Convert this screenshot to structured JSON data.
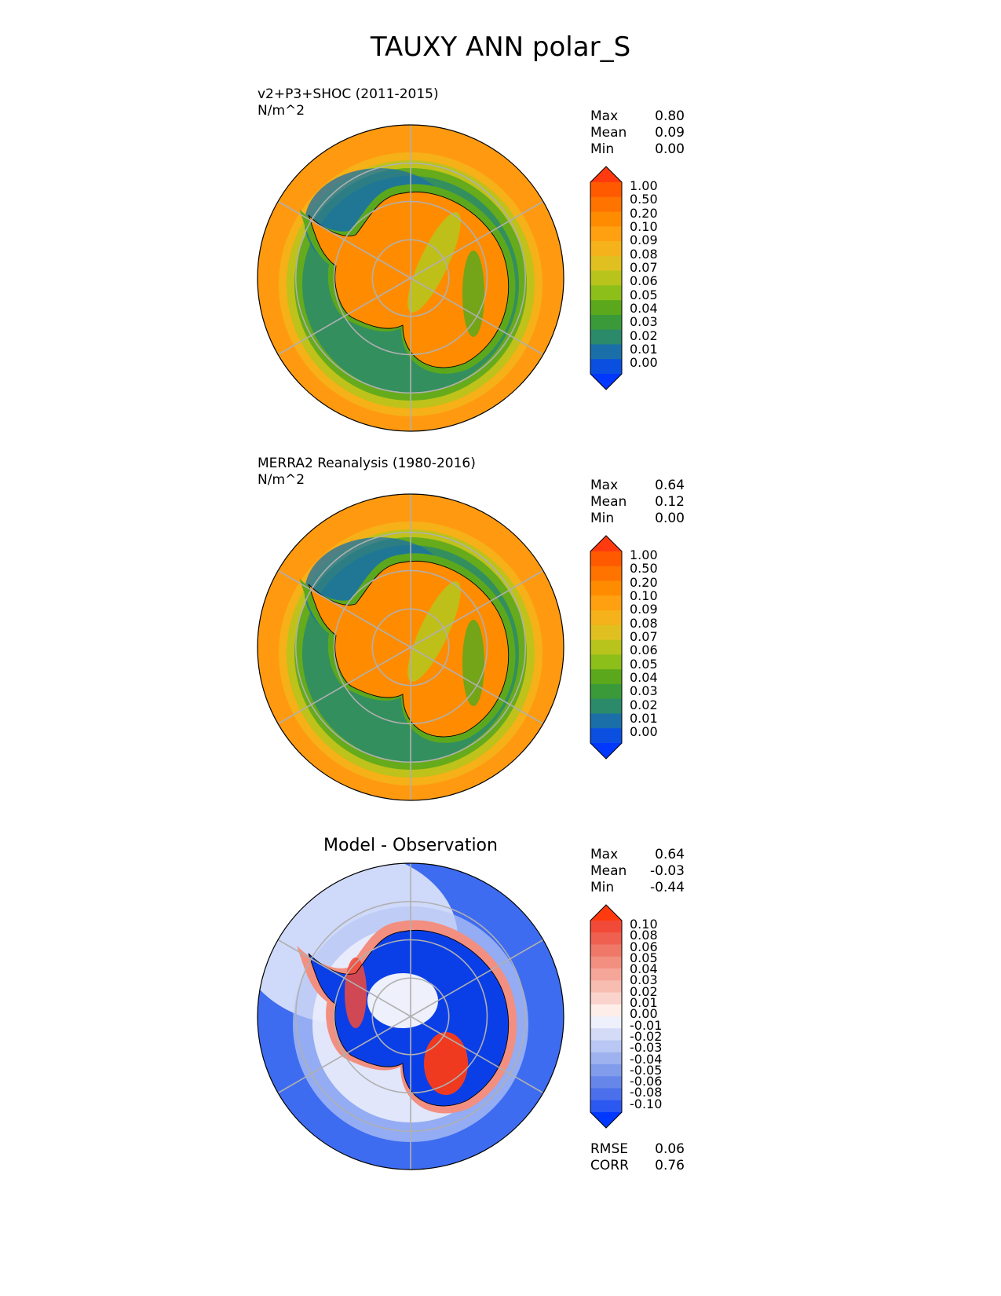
{
  "figure": {
    "title": "TAUXY ANN polar_S"
  },
  "panels": [
    {
      "id": "test",
      "title_line1": "v2+P3+SHOC (2011-2015)",
      "title_line2": "N/m^2",
      "center_title": "",
      "stats": [
        {
          "label": "Max",
          "value": "0.80"
        },
        {
          "label": "Mean",
          "value": "0.09"
        },
        {
          "label": "Min",
          "value": "0.00"
        }
      ],
      "colorbar": {
        "levels": [
          "1.00",
          "0.50",
          "0.20",
          "0.10",
          "0.09",
          "0.08",
          "0.07",
          "0.06",
          "0.05",
          "0.04",
          "0.03",
          "0.02",
          "0.01",
          "0.00"
        ],
        "colors": [
          "#ff3a0f",
          "#ff5a00",
          "#ff7300",
          "#ff8c00",
          "#ffa010",
          "#f5b21a",
          "#e0c020",
          "#b8c41c",
          "#8cbf1a",
          "#5ca81c",
          "#3a9a3a",
          "#2a8a6a",
          "#1a6fa8",
          "#0a4fe0",
          "#0038ff"
        ]
      },
      "map_style": "sequential"
    },
    {
      "id": "reference",
      "title_line1": "MERRA2 Reanalysis (1980-2016)",
      "title_line2": "N/m^2",
      "center_title": "",
      "stats": [
        {
          "label": "Max",
          "value": "0.64"
        },
        {
          "label": "Mean",
          "value": "0.12"
        },
        {
          "label": "Min",
          "value": "0.00"
        }
      ],
      "colorbar": {
        "levels": [
          "1.00",
          "0.50",
          "0.20",
          "0.10",
          "0.09",
          "0.08",
          "0.07",
          "0.06",
          "0.05",
          "0.04",
          "0.03",
          "0.02",
          "0.01",
          "0.00"
        ],
        "colors": [
          "#ff3a0f",
          "#ff5a00",
          "#ff7300",
          "#ff8c00",
          "#ffa010",
          "#f5b21a",
          "#e0c020",
          "#b8c41c",
          "#8cbf1a",
          "#5ca81c",
          "#3a9a3a",
          "#2a8a6a",
          "#1a6fa8",
          "#0a4fe0",
          "#0038ff"
        ]
      },
      "map_style": "sequential"
    },
    {
      "id": "diff",
      "title_line1": "",
      "title_line2": "",
      "center_title": "Model - Observation",
      "stats": [
        {
          "label": "Max",
          "value": "0.64"
        },
        {
          "label": "Mean",
          "value": "-0.03"
        },
        {
          "label": "Min",
          "value": "-0.44"
        }
      ],
      "colorbar": {
        "levels": [
          "0.10",
          "0.08",
          "0.06",
          "0.05",
          "0.04",
          "0.03",
          "0.02",
          "0.01",
          "0.00",
          "-0.01",
          "-0.02",
          "-0.03",
          "-0.04",
          "-0.05",
          "-0.06",
          "-0.08",
          "-0.10"
        ],
        "colors": [
          "#ff3a0f",
          "#f24a38",
          "#ef6050",
          "#f07868",
          "#f28f80",
          "#f5a698",
          "#f7bdb0",
          "#fad4cc",
          "#fdeee9",
          "#eef0fb",
          "#d3dbf7",
          "#b8c7f3",
          "#9db2ef",
          "#829cec",
          "#6686ea",
          "#4b70ec",
          "#2a58f0",
          "#0038ff"
        ]
      },
      "map_style": "diverging",
      "extra_stats": [
        {
          "label": "RMSE",
          "value": "0.06"
        },
        {
          "label": "CORR",
          "value": "0.76"
        }
      ]
    }
  ],
  "chart_data": {
    "type": "heatmap",
    "title": "TAUXY ANN polar_S",
    "projection": "south polar stereographic",
    "units": "N/m^2",
    "series": [
      {
        "name": "v2+P3+SHOC (2011-2015)",
        "max": 0.8,
        "mean": 0.09,
        "min": 0.0
      },
      {
        "name": "MERRA2 Reanalysis (1980-2016)",
        "max": 0.64,
        "mean": 0.12,
        "min": 0.0
      },
      {
        "name": "Model - Observation",
        "max": 0.64,
        "mean": -0.03,
        "min": -0.44,
        "rmse": 0.06,
        "corr": 0.76
      }
    ]
  }
}
